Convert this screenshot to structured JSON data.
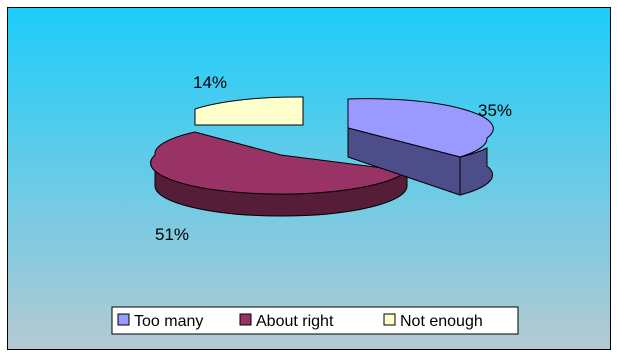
{
  "chart_data": {
    "type": "pie",
    "title": "",
    "categories": [
      "Too many",
      "About right",
      "Not enough"
    ],
    "values": [
      35,
      51,
      14
    ],
    "labels": [
      "35%",
      "51%",
      "14%"
    ],
    "colors": {
      "too_many": "#9999ff",
      "about_right": "#993366",
      "not_enough": "#ffffcc",
      "background_top": "#1ccdfb",
      "background_bottom": "#b4c9d2"
    },
    "legend": {
      "placement": "bottom-center",
      "items": [
        "Too many",
        "About right",
        "Not enough"
      ]
    },
    "style": "3d-exploded"
  }
}
